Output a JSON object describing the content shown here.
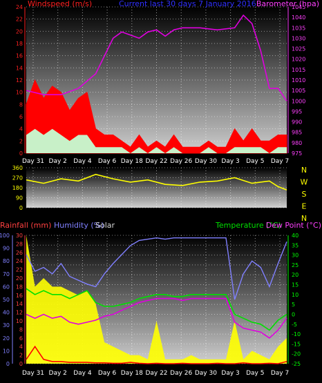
{
  "chart_data": [
    {
      "type": "line",
      "title": "Current last 30 days 7 January 2016",
      "left_label": "Windspeed (m/s)",
      "right_label": "Barometer (hpa)",
      "x_ticks": [
        "Day 31",
        "Day 2",
        "Day 4",
        "Day 6",
        "Day 18",
        "Day 22",
        "Day 26",
        "Day 30",
        "Day 3",
        "Day 5",
        "Day 7"
      ],
      "left_ticks": [
        "0",
        "2",
        "4",
        "6",
        "8",
        "10",
        "12",
        "14",
        "16",
        "18",
        "20",
        "22",
        "24"
      ],
      "right_ticks": [
        "975",
        "980",
        "985",
        "990",
        "995",
        "1000",
        "1005",
        "1010",
        "1015",
        "1020",
        "1025",
        "1030",
        "1035",
        "1040",
        "1045"
      ],
      "ylim_left": [
        0,
        24
      ],
      "ylim_right": [
        975,
        1045
      ],
      "colors": {
        "wind": "#ff0000",
        "gust": "#c8f0c8",
        "barometer": "#e000e0",
        "title": "#3030ff",
        "left_axis": "#ff2020",
        "right_axis": "#ff40ff"
      },
      "series": [
        {
          "name": "Barometer",
          "x": [
            0,
            2,
            4,
            6,
            8,
            10,
            11,
            13,
            14,
            15,
            16,
            17,
            18,
            20,
            22,
            24,
            25,
            26,
            27,
            28,
            29,
            30
          ],
          "values": [
            1005,
            1003,
            1003,
            1006,
            1013,
            1030,
            1033,
            1030,
            1033,
            1034,
            1031,
            1034,
            1035,
            1035,
            1034,
            1035,
            1041,
            1037,
            1024,
            1006,
            1006,
            1000
          ]
        },
        {
          "name": "Windspeed",
          "x": [
            0,
            1,
            2,
            3,
            4,
            5,
            6,
            7,
            8,
            9,
            10,
            11,
            12,
            13,
            14,
            15,
            16,
            17,
            18,
            19,
            20,
            21,
            22,
            23,
            24,
            25,
            26,
            27,
            28,
            29,
            30
          ],
          "values": [
            8,
            12,
            9,
            11,
            10,
            7,
            9,
            10,
            4,
            3,
            3,
            2,
            1,
            3,
            1,
            2,
            1,
            3,
            1,
            1,
            1,
            2,
            1,
            1,
            4,
            2,
            4,
            2,
            2,
            3,
            3
          ]
        },
        {
          "name": "Gust",
          "x": [
            0,
            1,
            2,
            3,
            4,
            5,
            6,
            7,
            8,
            9,
            10,
            11,
            12,
            13,
            14,
            15,
            16,
            17,
            18,
            19,
            20,
            21,
            22,
            23,
            24,
            25,
            26,
            27,
            28,
            29,
            30
          ],
          "values": [
            3,
            4,
            3,
            4,
            3,
            2,
            3,
            3,
            1,
            1,
            1,
            1,
            0,
            1,
            0,
            1,
            0,
            1,
            0,
            0,
            0,
            1,
            0,
            0,
            1,
            1,
            1,
            1,
            0,
            1,
            1
          ]
        }
      ]
    },
    {
      "type": "line",
      "left_ticks": [
        "0",
        "90",
        "180",
        "270",
        "360"
      ],
      "right_letters": [
        "N",
        "W",
        "S",
        "E",
        "N"
      ],
      "ylim": [
        0,
        360
      ],
      "colors": {
        "direction": "#ffff00",
        "left_axis": "#ffff00",
        "right_axis": "#ffff00"
      },
      "series": [
        {
          "name": "Wind Direction",
          "x": [
            0,
            2,
            4,
            6,
            8,
            10,
            12,
            14,
            16,
            18,
            20,
            22,
            24,
            26,
            28,
            29,
            30
          ],
          "values": [
            250,
            220,
            260,
            240,
            300,
            260,
            230,
            250,
            210,
            200,
            230,
            240,
            270,
            220,
            240,
            190,
            160
          ]
        }
      ]
    },
    {
      "type": "line",
      "labels": {
        "rainfall": "Rainfall (mm)",
        "humidity": "Humidity (%)",
        "solar": "Solar",
        "temperature": "Temperature (°C)",
        "dewpoint": "Dew Point (°C)"
      },
      "x_ticks": [
        "Day 31",
        "Day 2",
        "Day 4",
        "Day 6",
        "Day 18",
        "Day 22",
        "Day 26",
        "Day 30",
        "Day 3",
        "Day 5",
        "Day 7"
      ],
      "humidity_ticks": [
        "0",
        "10",
        "20",
        "30",
        "40",
        "50",
        "60",
        "70",
        "80",
        "90",
        "100"
      ],
      "rain_ticks": [
        "0",
        "2",
        "4",
        "6",
        "8",
        "10",
        "12",
        "14",
        "16",
        "18",
        "20",
        "22",
        "24",
        "26",
        "28",
        "30"
      ],
      "temp_ticks": [
        "-25",
        "-20",
        "-15",
        "-10",
        "-5",
        "0",
        "5",
        "10",
        "15",
        "20",
        "25",
        "30",
        "35",
        "40"
      ],
      "ylim_humidity": [
        0,
        100
      ],
      "ylim_rain": [
        0,
        30
      ],
      "ylim_temp": [
        -25,
        40
      ],
      "colors": {
        "rainfall": "#ff0000",
        "humidity": "#8080ff",
        "solar": "#ffff00",
        "temperature": "#00e000",
        "dewpoint": "#e000e0",
        "temp_axis": "#00ff00",
        "rain_axis": "#ff4040",
        "hum_axis": "#8080ff",
        "solar_text": "#e0e0e0"
      },
      "series": [
        {
          "name": "Humidity",
          "x": [
            0,
            1,
            2,
            3,
            4,
            5,
            6,
            7,
            8,
            9,
            10,
            11,
            12,
            13,
            14,
            15,
            16,
            17,
            18,
            19,
            20,
            21,
            22,
            23,
            24,
            25,
            26,
            27,
            28,
            29,
            30
          ],
          "values": [
            85,
            72,
            75,
            70,
            78,
            68,
            65,
            62,
            60,
            70,
            78,
            85,
            92,
            96,
            97,
            98,
            97,
            98,
            98,
            98,
            98,
            98,
            98,
            98,
            50,
            70,
            80,
            75,
            60,
            78,
            95
          ]
        },
        {
          "name": "Temperature",
          "x": [
            0,
            1,
            2,
            3,
            4,
            5,
            6,
            7,
            8,
            9,
            10,
            11,
            12,
            13,
            14,
            15,
            16,
            17,
            18,
            19,
            20,
            21,
            22,
            23,
            24,
            25,
            26,
            27,
            28,
            29,
            30
          ],
          "values": [
            13,
            10,
            12,
            10,
            10,
            8,
            10,
            12,
            6,
            4,
            4,
            5,
            6,
            8,
            9,
            10,
            10,
            9,
            9,
            10,
            10,
            10,
            10,
            10,
            0,
            -2,
            -4,
            -5,
            -8,
            -3,
            0
          ]
        },
        {
          "name": "Dew Point",
          "x": [
            0,
            1,
            2,
            3,
            4,
            5,
            6,
            7,
            8,
            9,
            10,
            11,
            12,
            13,
            14,
            15,
            16,
            17,
            18,
            19,
            20,
            21,
            22,
            23,
            24,
            25,
            26,
            27,
            28,
            29,
            30
          ],
          "values": [
            0,
            -2,
            0,
            -2,
            -1,
            -4,
            -5,
            -4,
            -3,
            -1,
            0,
            2,
            4,
            6,
            7,
            8,
            8,
            8,
            7,
            8,
            8,
            8,
            8,
            8,
            -4,
            -7,
            -8,
            -9,
            -12,
            -8,
            -2
          ]
        },
        {
          "name": "Solar",
          "x": [
            0,
            1,
            2,
            3,
            4,
            5,
            6,
            7,
            8,
            9,
            10,
            11,
            12,
            13,
            14,
            15,
            16,
            17,
            18,
            19,
            20,
            21,
            22,
            23,
            24,
            25,
            26,
            27,
            28,
            29,
            30
          ],
          "values": [
            30,
            18,
            20,
            18,
            18,
            17,
            16,
            17,
            14,
            5,
            4,
            3,
            2,
            2,
            1,
            10,
            1,
            1,
            1,
            2,
            1,
            1,
            1,
            1,
            10,
            1,
            3,
            2,
            1,
            4,
            6
          ]
        },
        {
          "name": "Rainfall",
          "x": [
            0,
            1,
            2,
            3,
            4,
            5,
            6,
            7,
            8,
            9,
            10,
            11,
            12,
            13,
            14,
            15,
            16,
            17,
            18,
            19,
            20,
            21,
            22,
            23,
            24,
            25,
            26,
            27,
            28,
            29,
            30
          ],
          "values": [
            1,
            4,
            1,
            0.5,
            0.5,
            0.3,
            0.3,
            0.3,
            0.2,
            0.2,
            0.1,
            0.1,
            0.3,
            0.1,
            0,
            0.1,
            0,
            0,
            0.1,
            0,
            0,
            0,
            0.1,
            0,
            0,
            0.2,
            0,
            0,
            0.1,
            0,
            0.5
          ]
        }
      ]
    }
  ]
}
